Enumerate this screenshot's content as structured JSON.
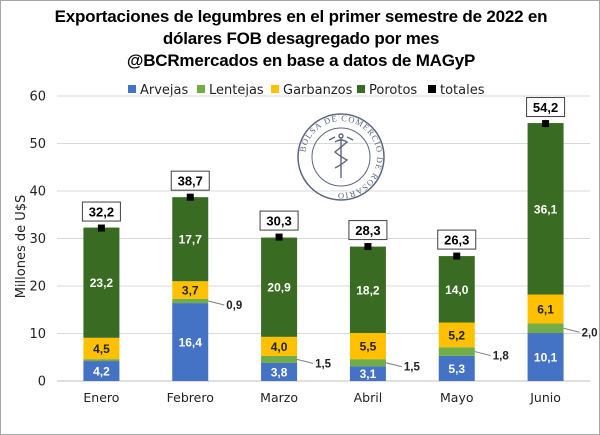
{
  "title_lines": [
    "Exportaciones de legumbres en el primer semestre de 2022 en",
    "dólares FOB desagregado por mes",
    "@BCRmercados en base a datos de MAGyP"
  ],
  "seal_text": "BOLSA DE COMERCIO DE ROSARIO",
  "chart_data": {
    "type": "bar",
    "stacked": true,
    "categories": [
      "Enero",
      "Febrero",
      "Marzo",
      "Abril",
      "Mayo",
      "Junio"
    ],
    "series": [
      {
        "name": "Arvejas",
        "color": "#4472c4",
        "values": [
          4.2,
          16.4,
          3.8,
          3.1,
          5.3,
          10.1
        ],
        "labels": [
          "4,2",
          "16,4",
          "3,8",
          "3,1",
          "5,3",
          "10,1"
        ]
      },
      {
        "name": "Lentejas",
        "color": "#70ad47",
        "values": [
          0.4,
          0.9,
          1.5,
          1.5,
          1.8,
          2.0
        ],
        "labels": [
          "",
          "0,9",
          "1,5",
          "1,5",
          "1,8",
          "2,0"
        ]
      },
      {
        "name": "Garbanzos",
        "color": "#ffc000",
        "values": [
          4.5,
          3.7,
          4.0,
          5.5,
          5.2,
          6.1
        ],
        "labels": [
          "4,5",
          "3,7",
          "4,0",
          "5,5",
          "5,2",
          "6,1"
        ]
      },
      {
        "name": "Porotos",
        "color": "#3a6b22",
        "values": [
          23.2,
          17.7,
          20.9,
          18.2,
          14.0,
          36.1
        ],
        "labels": [
          "23,2",
          "17,7",
          "20,9",
          "18,2",
          "14,0",
          "36,1"
        ]
      }
    ],
    "totals": {
      "name": "totales",
      "color": "#000000",
      "values": [
        32.2,
        38.7,
        30.3,
        28.3,
        26.3,
        54.2
      ],
      "labels": [
        "32,2",
        "38,7",
        "30,3",
        "28,3",
        "26,3",
        "54,2"
      ]
    },
    "ylabel": "Millones de U$S",
    "ylim": [
      0,
      60
    ],
    "yticks": [
      0,
      10,
      20,
      30,
      40,
      50,
      60
    ],
    "grid": true,
    "legend_position": "top"
  }
}
